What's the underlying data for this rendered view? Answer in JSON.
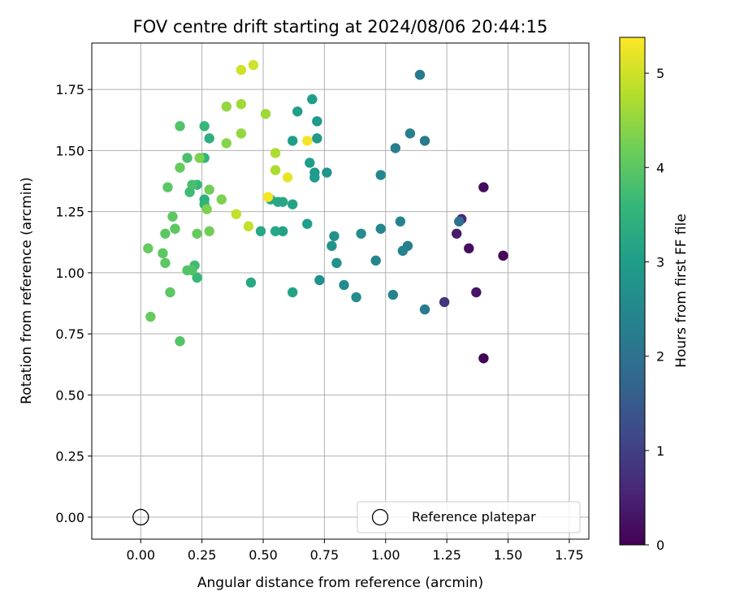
{
  "chart_data": {
    "type": "scatter",
    "title": "FOV centre drift starting at 2024/08/06 20:44:15",
    "xlabel": "Angular distance from reference (arcmin)",
    "ylabel": "Rotation from reference (arcmin)",
    "xlim": [
      -0.2,
      1.83
    ],
    "ylim": [
      -0.09,
      1.94
    ],
    "x_ticks": [
      0.0,
      0.25,
      0.5,
      0.75,
      1.0,
      1.25,
      1.5,
      1.75
    ],
    "x_tick_labels": [
      "0.00",
      "0.25",
      "0.50",
      "0.75",
      "1.00",
      "1.25",
      "1.50",
      "1.75"
    ],
    "y_ticks": [
      0.0,
      0.25,
      0.5,
      0.75,
      1.0,
      1.25,
      1.5,
      1.75
    ],
    "y_tick_labels": [
      "0.00",
      "0.25",
      "0.50",
      "0.75",
      "1.00",
      "1.25",
      "1.50",
      "1.75"
    ],
    "grid": true,
    "colormap": "viridis",
    "colorbar": {
      "label": "Hours from first FF file",
      "range": [
        0,
        5.38
      ],
      "ticks": [
        0,
        1,
        2,
        3,
        4,
        5
      ],
      "tick_labels": [
        "0",
        "1",
        "2",
        "3",
        "4",
        "5"
      ]
    },
    "legend": {
      "position": "lower-right",
      "entries": [
        {
          "label": "Reference platepar",
          "marker": "open-circle"
        }
      ]
    },
    "reference_point": {
      "x": 0.0,
      "y": 0.0,
      "label": "Reference platepar"
    },
    "points": [
      {
        "x": 1.4,
        "y": 0.65,
        "c": 0.05
      },
      {
        "x": 1.48,
        "y": 1.07,
        "c": 0.1
      },
      {
        "x": 1.4,
        "y": 1.35,
        "c": 0.15
      },
      {
        "x": 1.34,
        "y": 1.1,
        "c": 0.2
      },
      {
        "x": 1.37,
        "y": 0.92,
        "c": 0.3
      },
      {
        "x": 1.29,
        "y": 1.16,
        "c": 0.4
      },
      {
        "x": 1.31,
        "y": 1.22,
        "c": 0.6
      },
      {
        "x": 1.24,
        "y": 0.88,
        "c": 0.8
      },
      {
        "x": 1.3,
        "y": 1.21,
        "c": 2.0
      },
      {
        "x": 1.16,
        "y": 0.85,
        "c": 2.2
      },
      {
        "x": 1.14,
        "y": 1.81,
        "c": 2.2
      },
      {
        "x": 1.16,
        "y": 1.54,
        "c": 2.2
      },
      {
        "x": 1.1,
        "y": 1.57,
        "c": 2.3
      },
      {
        "x": 1.09,
        "y": 1.11,
        "c": 2.3
      },
      {
        "x": 1.07,
        "y": 1.09,
        "c": 2.4
      },
      {
        "x": 1.06,
        "y": 1.21,
        "c": 2.4
      },
      {
        "x": 1.04,
        "y": 1.51,
        "c": 2.3
      },
      {
        "x": 1.03,
        "y": 0.91,
        "c": 2.4
      },
      {
        "x": 0.98,
        "y": 1.4,
        "c": 2.5
      },
      {
        "x": 0.98,
        "y": 1.18,
        "c": 2.5
      },
      {
        "x": 0.96,
        "y": 1.05,
        "c": 2.5
      },
      {
        "x": 0.9,
        "y": 1.16,
        "c": 2.6
      },
      {
        "x": 0.88,
        "y": 0.9,
        "c": 2.6
      },
      {
        "x": 0.83,
        "y": 0.95,
        "c": 2.6
      },
      {
        "x": 0.8,
        "y": 1.04,
        "c": 2.7
      },
      {
        "x": 0.79,
        "y": 1.15,
        "c": 2.7
      },
      {
        "x": 0.73,
        "y": 0.97,
        "c": 2.7
      },
      {
        "x": 0.78,
        "y": 1.11,
        "c": 2.8
      },
      {
        "x": 0.76,
        "y": 1.41,
        "c": 2.8
      },
      {
        "x": 0.72,
        "y": 1.62,
        "c": 2.9
      },
      {
        "x": 0.72,
        "y": 1.55,
        "c": 2.9
      },
      {
        "x": 0.71,
        "y": 1.39,
        "c": 2.9
      },
      {
        "x": 0.71,
        "y": 1.41,
        "c": 2.9
      },
      {
        "x": 0.7,
        "y": 1.71,
        "c": 3.0
      },
      {
        "x": 0.69,
        "y": 1.45,
        "c": 3.0
      },
      {
        "x": 0.68,
        "y": 1.2,
        "c": 3.0
      },
      {
        "x": 0.64,
        "y": 1.66,
        "c": 3.0
      },
      {
        "x": 0.62,
        "y": 1.54,
        "c": 3.0
      },
      {
        "x": 0.62,
        "y": 1.28,
        "c": 3.1
      },
      {
        "x": 0.62,
        "y": 0.92,
        "c": 3.1
      },
      {
        "x": 0.58,
        "y": 1.17,
        "c": 3.1
      },
      {
        "x": 0.58,
        "y": 1.29,
        "c": 3.2
      },
      {
        "x": 0.56,
        "y": 1.29,
        "c": 3.2
      },
      {
        "x": 0.55,
        "y": 1.17,
        "c": 3.2
      },
      {
        "x": 0.53,
        "y": 1.3,
        "c": 3.2
      },
      {
        "x": 0.49,
        "y": 1.17,
        "c": 3.2
      },
      {
        "x": 0.45,
        "y": 0.96,
        "c": 3.2
      },
      {
        "x": 0.28,
        "y": 1.55,
        "c": 3.4
      },
      {
        "x": 0.26,
        "y": 1.3,
        "c": 3.4
      },
      {
        "x": 0.26,
        "y": 1.28,
        "c": 3.5
      },
      {
        "x": 0.26,
        "y": 1.47,
        "c": 3.5
      },
      {
        "x": 0.23,
        "y": 1.36,
        "c": 3.6
      },
      {
        "x": 0.26,
        "y": 1.6,
        "c": 3.6
      },
      {
        "x": 0.23,
        "y": 0.98,
        "c": 3.6
      },
      {
        "x": 0.22,
        "y": 1.03,
        "c": 3.7
      },
      {
        "x": 0.2,
        "y": 1.33,
        "c": 3.7
      },
      {
        "x": 0.21,
        "y": 1.36,
        "c": 3.8
      },
      {
        "x": 0.19,
        "y": 1.47,
        "c": 3.8
      },
      {
        "x": 0.16,
        "y": 1.6,
        "c": 3.9
      },
      {
        "x": 0.16,
        "y": 0.72,
        "c": 3.9
      },
      {
        "x": 0.19,
        "y": 1.01,
        "c": 3.9
      },
      {
        "x": 0.21,
        "y": 1.01,
        "c": 3.9
      },
      {
        "x": 0.13,
        "y": 1.23,
        "c": 4.0
      },
      {
        "x": 0.14,
        "y": 1.18,
        "c": 4.0
      },
      {
        "x": 0.12,
        "y": 0.92,
        "c": 4.0
      },
      {
        "x": 0.11,
        "y": 1.35,
        "c": 4.0
      },
      {
        "x": 0.1,
        "y": 1.16,
        "c": 4.0
      },
      {
        "x": 0.1,
        "y": 1.04,
        "c": 4.0
      },
      {
        "x": 0.09,
        "y": 1.08,
        "c": 4.0
      },
      {
        "x": 0.03,
        "y": 1.1,
        "c": 4.1
      },
      {
        "x": 0.04,
        "y": 0.82,
        "c": 4.1
      },
      {
        "x": 0.16,
        "y": 1.43,
        "c": 4.1
      },
      {
        "x": 0.23,
        "y": 1.16,
        "c": 4.1
      },
      {
        "x": 0.28,
        "y": 1.17,
        "c": 4.2
      },
      {
        "x": 0.28,
        "y": 1.34,
        "c": 4.2
      },
      {
        "x": 0.27,
        "y": 1.26,
        "c": 4.3
      },
      {
        "x": 0.33,
        "y": 1.3,
        "c": 4.3
      },
      {
        "x": 0.24,
        "y": 1.47,
        "c": 4.3
      },
      {
        "x": 0.35,
        "y": 1.53,
        "c": 4.4
      },
      {
        "x": 0.35,
        "y": 1.68,
        "c": 4.5
      },
      {
        "x": 0.41,
        "y": 1.57,
        "c": 4.5
      },
      {
        "x": 0.41,
        "y": 1.69,
        "c": 4.6
      },
      {
        "x": 0.51,
        "y": 1.65,
        "c": 4.6
      },
      {
        "x": 0.55,
        "y": 1.49,
        "c": 4.7
      },
      {
        "x": 0.55,
        "y": 1.42,
        "c": 4.7
      },
      {
        "x": 0.39,
        "y": 1.24,
        "c": 4.9
      },
      {
        "x": 0.44,
        "y": 1.19,
        "c": 4.9
      },
      {
        "x": 0.41,
        "y": 1.83,
        "c": 5.0
      },
      {
        "x": 0.46,
        "y": 1.85,
        "c": 5.0
      },
      {
        "x": 0.6,
        "y": 1.39,
        "c": 5.2
      },
      {
        "x": 0.52,
        "y": 1.31,
        "c": 5.3
      },
      {
        "x": 0.68,
        "y": 1.54,
        "c": 5.3
      }
    ]
  }
}
